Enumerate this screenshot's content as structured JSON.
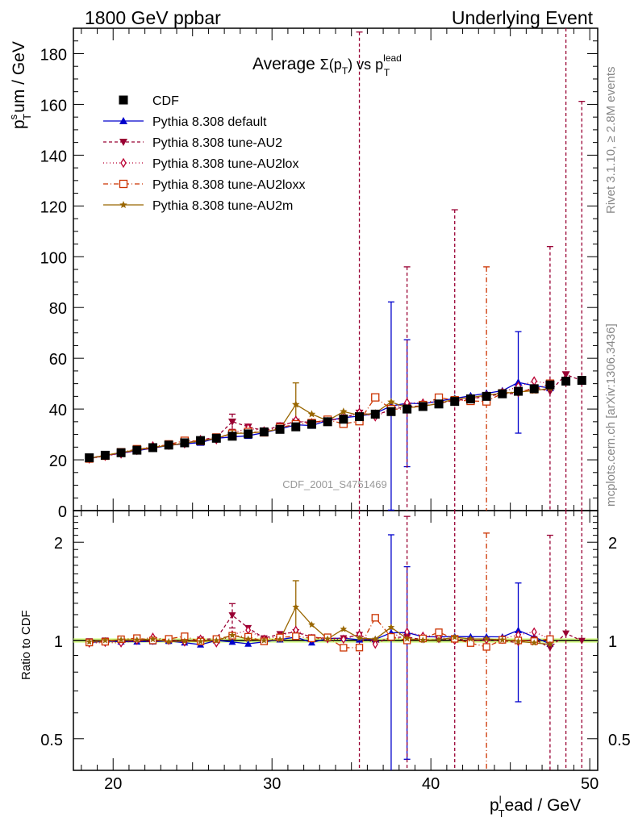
{
  "header": {
    "left": "1800 GeV ppbar",
    "right": "Underlying Event"
  },
  "side_text": {
    "rivet": "Rivet 3.1.10, ≥ 2.8M events",
    "mcplots": "mcplots.cern.ch [arXiv:1306.3436]"
  },
  "watermark": "CDF_2001_S4751469",
  "chart_data": [
    {
      "type": "scatter",
      "title": "Average Σ(pT) vs pT lead",
      "title_parts": {
        "prefix": "Average ",
        "sigma": "Σ(p",
        "sub1": "T",
        "mid": ") vs p",
        "sup": "lead",
        "sub2": "T"
      },
      "ylabel": "pTsum / GeV",
      "ylabel_parts": {
        "p": "p",
        "sup": "s",
        "sub": "T",
        "rest": "um / GeV"
      },
      "xlabel": "pTlead / GeV",
      "xlabel_parts": {
        "p": "p",
        "sup": "l",
        "sub": "T",
        "rest": "ead / GeV"
      },
      "xlim": [
        17.5,
        50.5
      ],
      "ylim": [
        0,
        190
      ],
      "yticks": [
        0,
        20,
        40,
        60,
        80,
        100,
        120,
        140,
        160,
        180
      ],
      "xticks": [
        20,
        30,
        40,
        50
      ],
      "legend_position": "top-left",
      "x": [
        18.5,
        19.5,
        20.5,
        21.5,
        22.5,
        23.5,
        24.5,
        25.5,
        26.5,
        27.5,
        28.5,
        29.5,
        30.5,
        31.5,
        32.5,
        33.5,
        34.5,
        35.5,
        36.5,
        37.5,
        38.5,
        39.5,
        40.5,
        41.5,
        42.5,
        43.5,
        44.5,
        45.5,
        46.5,
        47.5,
        48.5,
        49.5
      ],
      "series": [
        {
          "name": "CDF",
          "color": "#000000",
          "marker": "square",
          "dash": "",
          "values": [
            20.8,
            21.8,
            22.8,
            23.8,
            24.8,
            25.8,
            26.7,
            27.6,
            28.5,
            29.3,
            30.2,
            31.0,
            32.0,
            33.0,
            34.0,
            35.0,
            36.0,
            37.0,
            38.0,
            39.0,
            40.0,
            41.0,
            42.0,
            43.0,
            44.0,
            45.0,
            46.0,
            47.0,
            48.0,
            49.5,
            51.0,
            51.3
          ]
        },
        {
          "name": "Pythia 8.308 default",
          "color": "#0000cc",
          "marker": "triangle-up",
          "dash": "",
          "values": [
            20.5,
            21.7,
            22.6,
            23.6,
            24.6,
            25.7,
            26.3,
            26.8,
            28.5,
            29.0,
            29.5,
            30.7,
            32.2,
            33.8,
            33.5,
            35.5,
            36.6,
            37.2,
            38.3,
            41.2,
            42.3,
            42.1,
            43.1,
            44.2,
            45.2,
            46.2,
            47.2,
            50.5,
            49.2,
            48.3,
            null,
            null
          ],
          "errors": [
            null,
            null,
            null,
            null,
            null,
            null,
            null,
            null,
            null,
            null,
            null,
            null,
            null,
            null,
            null,
            null,
            null,
            null,
            null,
            41.0,
            25.0,
            null,
            null,
            null,
            null,
            null,
            null,
            20.0,
            null,
            null,
            null,
            null
          ]
        },
        {
          "name": "Pythia 8.308 tune-AU2",
          "color": "#990033",
          "marker": "triangle-down",
          "dash": "4,3",
          "values": [
            20.7,
            21.8,
            22.6,
            23.8,
            24.6,
            26.0,
            26.5,
            27.8,
            28.9,
            35.0,
            33.0,
            31.5,
            33.5,
            35.0,
            34.8,
            35.5,
            36.6,
            38.5,
            37.5,
            39.8,
            41.0,
            41.2,
            42.2,
            43.5,
            44.0,
            45.0,
            46.0,
            46.2,
            48.5,
            47.0,
            53.6,
            51.2
          ],
          "errors": [
            null,
            null,
            null,
            null,
            null,
            null,
            null,
            null,
            null,
            3.0,
            null,
            null,
            null,
            null,
            null,
            null,
            null,
            150.0,
            null,
            null,
            55.0,
            null,
            null,
            75.0,
            null,
            null,
            null,
            null,
            null,
            57.0,
            150.0,
            110.0
          ]
        },
        {
          "name": "Pythia 8.308 tune-AU2lox",
          "color": "#bb0033",
          "marker": "diamond-open",
          "dash": "1,3",
          "values": [
            20.4,
            21.5,
            22.4,
            23.8,
            25.4,
            25.8,
            26.4,
            27.9,
            28.0,
            30.5,
            32.5,
            31.3,
            33.0,
            35.5,
            34.5,
            35.4,
            36.3,
            38.6,
            37.0,
            40.0,
            42.5,
            42.3,
            43.0,
            43.0,
            44.0,
            45.2,
            46.5,
            48.9,
            51.0,
            50.0,
            null,
            null
          ]
        },
        {
          "name": "Pythia 8.308 tune-AU2loxx",
          "color": "#cc3300",
          "marker": "square-open",
          "dash": "6,3,1,3",
          "values": [
            20.5,
            21.6,
            23.0,
            24.2,
            24.8,
            26.1,
            27.5,
            27.4,
            28.8,
            30.3,
            31.0,
            30.8,
            32.7,
            34.0,
            34.5,
            35.8,
            34.2,
            35.2,
            44.6,
            40.0,
            40.0,
            41.6,
            44.5,
            43.5,
            43.2,
            43.0,
            46.2,
            47.0,
            47.8,
            50.0,
            null,
            null
          ],
          "errors": [
            null,
            null,
            null,
            null,
            null,
            null,
            null,
            null,
            null,
            null,
            null,
            null,
            null,
            null,
            null,
            null,
            null,
            null,
            null,
            null,
            null,
            null,
            null,
            null,
            null,
            53.0,
            null,
            null,
            null,
            null,
            null,
            null
          ]
        },
        {
          "name": "Pythia 8.308 tune-AU2m",
          "color": "#996600",
          "marker": "star",
          "dash": "",
          "values": [
            20.6,
            21.8,
            22.9,
            23.9,
            25.0,
            25.6,
            26.6,
            27.4,
            28.5,
            30.4,
            30.5,
            31.0,
            32.2,
            41.8,
            38.0,
            35.4,
            39.0,
            37.6,
            38.4,
            42.8,
            40.5,
            41.1,
            42.2,
            44.0,
            44.5,
            45.5,
            46.2,
            46.7,
            47.2,
            48.2,
            null,
            null
          ],
          "errors": [
            null,
            null,
            null,
            null,
            null,
            null,
            null,
            null,
            null,
            null,
            null,
            null,
            null,
            8.5,
            null,
            null,
            null,
            null,
            null,
            null,
            null,
            null,
            null,
            null,
            null,
            null,
            null,
            null,
            null,
            null,
            null,
            null
          ]
        }
      ]
    },
    {
      "type": "scatter",
      "title": "",
      "ylabel": "Ratio to CDF",
      "log_y": true,
      "ylim": [
        0.4,
        2.5
      ],
      "yticks": [
        0.5,
        1,
        2
      ],
      "ytick_labels": [
        "0.5",
        "1",
        "2"
      ],
      "reference_band_color": "#ccff66"
    }
  ]
}
